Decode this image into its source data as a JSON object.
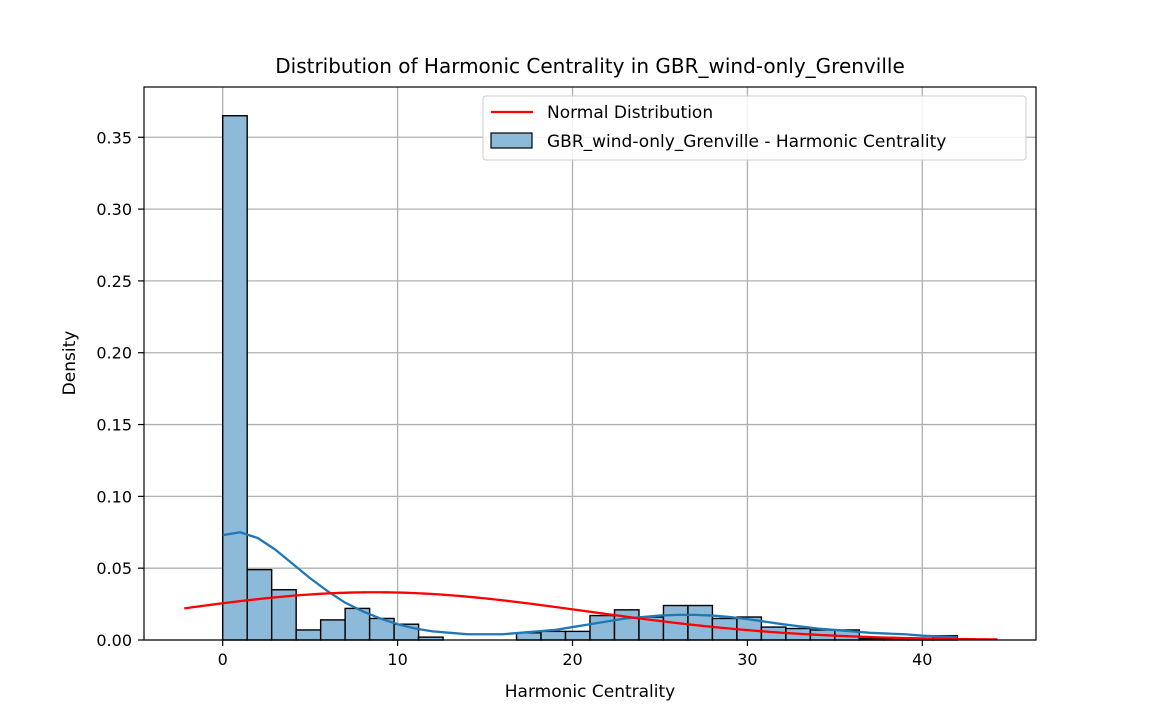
{
  "chart_data": {
    "type": "bar",
    "title": "Distribution of Harmonic Centrality in GBR_wind-only_Grenville",
    "xlabel": "Harmonic Centrality",
    "ylabel": "Density",
    "xlim": [
      -4.5,
      46.5
    ],
    "ylim": [
      0,
      0.385
    ],
    "xticks": [
      0,
      10,
      20,
      30,
      40
    ],
    "yticks": [
      0.0,
      0.05,
      0.1,
      0.15,
      0.2,
      0.25,
      0.3,
      0.35
    ],
    "ytick_labels": [
      "0.00",
      "0.05",
      "0.10",
      "0.15",
      "0.20",
      "0.25",
      "0.30",
      "0.35"
    ],
    "grid": true,
    "legend_position": "upper right",
    "histogram": {
      "name": "GBR_wind-only_Grenville - Harmonic Centrality",
      "color": "#8ebad9",
      "edge_color": "#000000",
      "bin_edges": [
        0.0,
        1.4,
        2.8,
        4.2,
        5.6,
        7.0,
        8.4,
        9.8,
        11.2,
        12.6,
        14.0,
        15.4,
        16.8,
        18.2,
        19.6,
        21.0,
        22.4,
        23.8,
        25.2,
        26.6,
        28.0,
        29.4,
        30.8,
        32.2,
        33.6,
        35.0,
        36.4,
        37.8,
        39.2,
        40.6,
        42.0
      ],
      "values": [
        0.365,
        0.049,
        0.035,
        0.007,
        0.014,
        0.022,
        0.015,
        0.011,
        0.002,
        0.0,
        0.0,
        0.0,
        0.005,
        0.006,
        0.006,
        0.017,
        0.021,
        0.016,
        0.024,
        0.024,
        0.015,
        0.016,
        0.009,
        0.008,
        0.007,
        0.007,
        0.001,
        0.001,
        0.001,
        0.003
      ]
    },
    "kde": {
      "color": "#1f77b4",
      "x": [
        0.0,
        1.0,
        2.0,
        3.0,
        4.0,
        5.0,
        6.0,
        7.0,
        8.0,
        9.0,
        10.0,
        11.0,
        12.0,
        13.0,
        14.0,
        15.0,
        16.0,
        17.0,
        18.0,
        19.0,
        20.0,
        21.0,
        22.0,
        23.0,
        24.0,
        25.0,
        26.0,
        27.0,
        28.0,
        29.0,
        30.0,
        31.0,
        32.0,
        33.0,
        34.0,
        35.0,
        36.0,
        37.0,
        38.0,
        39.0,
        40.0,
        41.0,
        42.0
      ],
      "y": [
        0.073,
        0.075,
        0.071,
        0.063,
        0.053,
        0.043,
        0.034,
        0.026,
        0.02,
        0.015,
        0.011,
        0.008,
        0.006,
        0.005,
        0.004,
        0.004,
        0.004,
        0.005,
        0.006,
        0.007,
        0.009,
        0.011,
        0.013,
        0.015,
        0.016,
        0.017,
        0.0175,
        0.0175,
        0.017,
        0.016,
        0.0145,
        0.0128,
        0.011,
        0.0095,
        0.008,
        0.007,
        0.006,
        0.005,
        0.0045,
        0.004,
        0.003,
        0.0025,
        0.002
      ]
    },
    "normal": {
      "name": "Normal Distribution",
      "color": "#ff0000",
      "mean": 8.7,
      "std": 12.0,
      "x_range": [
        -2.2,
        44.3
      ]
    }
  }
}
